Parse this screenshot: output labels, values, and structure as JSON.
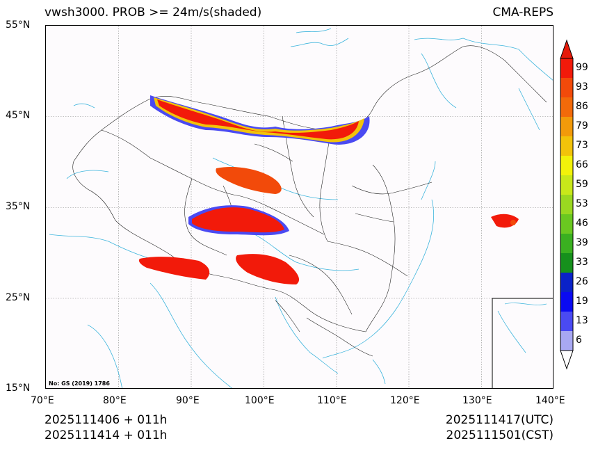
{
  "header": {
    "title": "vwsh3000. PROB >= 24m/s(shaded)",
    "model": "CMA-REPS"
  },
  "map": {
    "lat_labels": [
      "55°N",
      "45°N",
      "35°N",
      "25°N",
      "15°N"
    ],
    "lon_labels": [
      "70°E",
      "80°E",
      "90°E",
      "100°E",
      "110°E",
      "120°E",
      "130°E",
      "140°E"
    ],
    "stamp": "No: GS (2019) 1786",
    "extent": {
      "lon": [
        70,
        140
      ],
      "lat": [
        15,
        55
      ]
    }
  },
  "colorbar": {
    "levels": [
      "99",
      "93",
      "86",
      "79",
      "73",
      "66",
      "59",
      "53",
      "46",
      "39",
      "33",
      "26",
      "19",
      "13",
      "6"
    ],
    "colors": [
      "#f21a0a",
      "#f24a0a",
      "#f26a0a",
      "#f29a0a",
      "#f2c30a",
      "#f2f20a",
      "#c8e81a",
      "#9ad820",
      "#6ac820",
      "#3ab020",
      "#16901c",
      "#0a22c8",
      "#0a0af2",
      "#4a4af2",
      "#a8a8f2"
    ],
    "top_cap_color": "#e61a0a",
    "bottom_cap_color": "#ffffff"
  },
  "footer": {
    "left_line1": "2025111406  +  011h",
    "left_line2": "2025111414  +  011h",
    "right_line1": "2025111417(UTC)",
    "right_line2": "2025111501(CST)"
  }
}
